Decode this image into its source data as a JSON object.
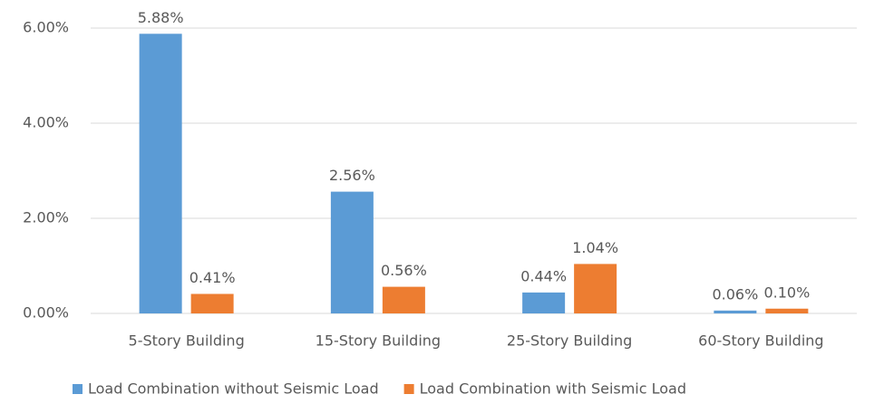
{
  "chart_data": {
    "type": "bar",
    "categories": [
      "5-Story Building",
      "15-Story Building",
      "25-Story Building",
      "60-Story Building"
    ],
    "series": [
      {
        "name": "Load Combination without Seismic Load",
        "color": "#5b9bd5",
        "values": [
          5.88,
          2.56,
          0.44,
          0.06
        ],
        "value_labels": [
          "5.88%",
          "2.56%",
          "0.44%",
          "0.06%"
        ]
      },
      {
        "name": "Load Combination with Seismic Load",
        "color": "#ed7d31",
        "values": [
          0.41,
          0.56,
          1.04,
          0.1
        ],
        "value_labels": [
          "0.41%",
          "0.56%",
          "1.04%",
          "0.10%"
        ]
      }
    ],
    "ylim": [
      0,
      6
    ],
    "yticks": [
      {
        "value": 0,
        "label": "0.00%"
      },
      {
        "value": 2,
        "label": "2.00%"
      },
      {
        "value": 4,
        "label": "4.00%"
      },
      {
        "value": 6,
        "label": "6.00%"
      }
    ],
    "grid": true,
    "legend": "bottom"
  }
}
